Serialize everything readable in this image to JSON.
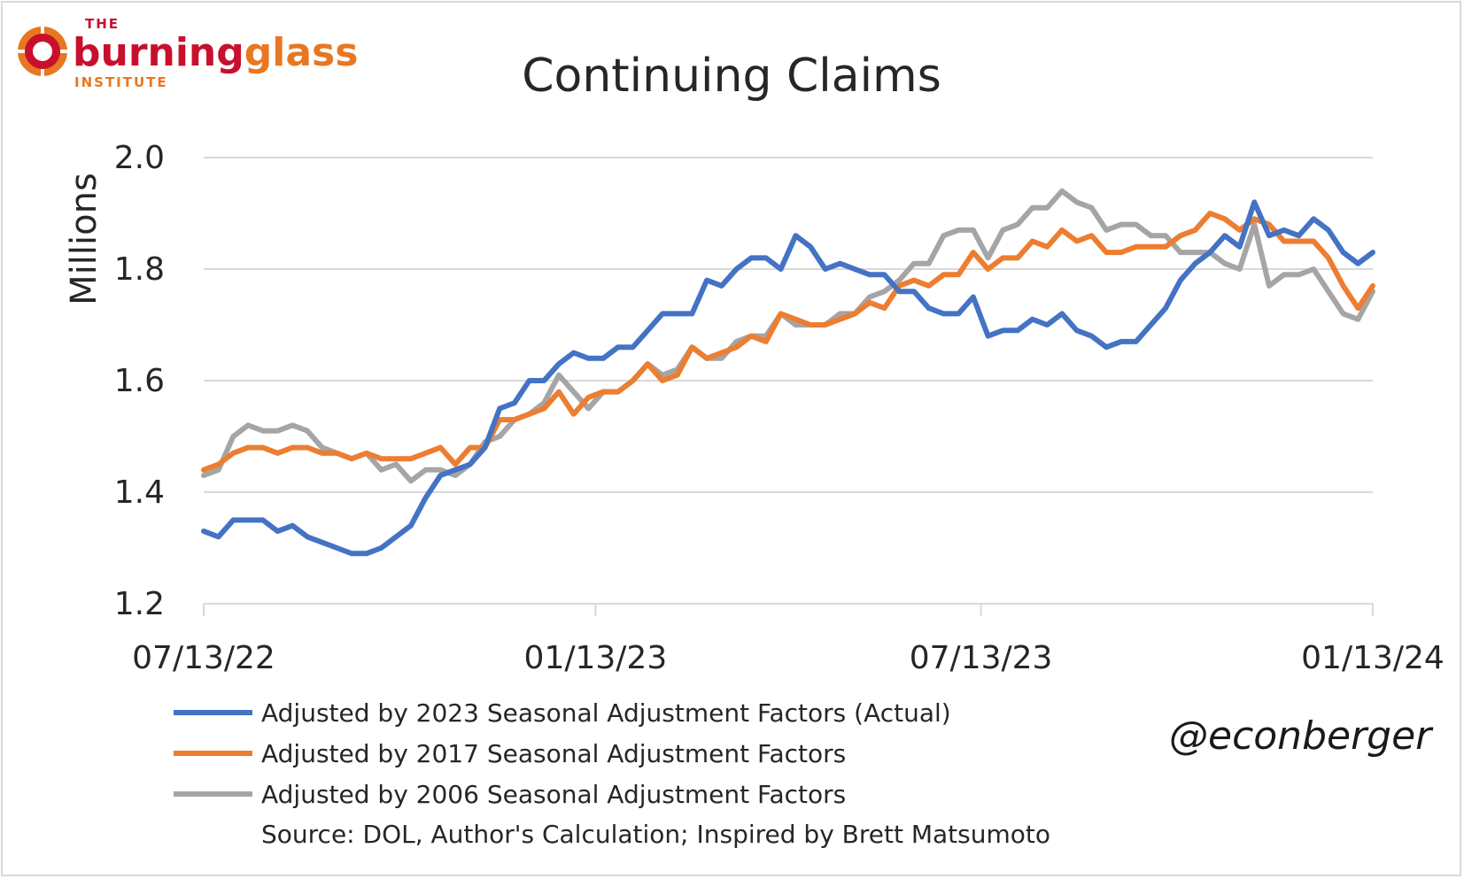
{
  "logo": {
    "the": "THE",
    "name_part1": "burning",
    "name_part2": "glass",
    "institute": "INSTITUTE"
  },
  "handle": "@econberger",
  "source_note": "Source: DOL, Author's Calculation; Inspired by Brett Matsumoto",
  "colors": {
    "series_2023": "#4472c4",
    "series_2017": "#ed7d31",
    "series_2006": "#a5a5a5",
    "logo_red": "#c8102e",
    "logo_orange": "#e87722"
  },
  "chart_data": {
    "type": "line",
    "title": "Continuing Claims",
    "ylabel": "Millions",
    "xlabel": "",
    "ylim": [
      1.2,
      2.0
    ],
    "yticks": [
      "1.2",
      "1.4",
      "1.6",
      "1.8",
      "2.0"
    ],
    "xticks": [
      "07/13/22",
      "01/13/23",
      "07/13/23",
      "01/13/24"
    ],
    "x_start": "07/13/22",
    "x_end": "01/13/24",
    "x_interval": "weekly",
    "grid": true,
    "legend_position": "bottom",
    "series": [
      {
        "name": "Adjusted by 2023 Seasonal Adjustment Factors (Actual)",
        "color": "#4472c4",
        "values": [
          1.33,
          1.32,
          1.35,
          1.35,
          1.35,
          1.33,
          1.34,
          1.32,
          1.31,
          1.3,
          1.29,
          1.29,
          1.3,
          1.32,
          1.34,
          1.39,
          1.43,
          1.44,
          1.45,
          1.48,
          1.55,
          1.56,
          1.6,
          1.6,
          1.63,
          1.65,
          1.64,
          1.64,
          1.66,
          1.66,
          1.69,
          1.72,
          1.72,
          1.72,
          1.78,
          1.77,
          1.8,
          1.82,
          1.82,
          1.8,
          1.86,
          1.84,
          1.8,
          1.81,
          1.8,
          1.79,
          1.79,
          1.76,
          1.76,
          1.73,
          1.72,
          1.72,
          1.75,
          1.68,
          1.69,
          1.69,
          1.71,
          1.7,
          1.72,
          1.69,
          1.68,
          1.66,
          1.67,
          1.67,
          1.7,
          1.73,
          1.78,
          1.81,
          1.83,
          1.86,
          1.84,
          1.92,
          1.86,
          1.87,
          1.86,
          1.89,
          1.87,
          1.83,
          1.81,
          1.83
        ]
      },
      {
        "name": "Adjusted by 2017 Seasonal Adjustment Factors",
        "color": "#ed7d31",
        "values": [
          1.44,
          1.45,
          1.47,
          1.48,
          1.48,
          1.47,
          1.48,
          1.48,
          1.47,
          1.47,
          1.46,
          1.47,
          1.46,
          1.46,
          1.46,
          1.47,
          1.48,
          1.45,
          1.48,
          1.48,
          1.53,
          1.53,
          1.54,
          1.55,
          1.58,
          1.54,
          1.57,
          1.58,
          1.58,
          1.6,
          1.63,
          1.6,
          1.61,
          1.66,
          1.64,
          1.65,
          1.66,
          1.68,
          1.67,
          1.72,
          1.71,
          1.7,
          1.7,
          1.71,
          1.72,
          1.74,
          1.73,
          1.77,
          1.78,
          1.77,
          1.79,
          1.79,
          1.83,
          1.8,
          1.82,
          1.82,
          1.85,
          1.84,
          1.87,
          1.85,
          1.86,
          1.83,
          1.83,
          1.84,
          1.84,
          1.84,
          1.86,
          1.87,
          1.9,
          1.89,
          1.87,
          1.89,
          1.88,
          1.85,
          1.85,
          1.85,
          1.82,
          1.77,
          1.73,
          1.77
        ]
      },
      {
        "name": "Adjusted by 2006 Seasonal Adjustment Factors",
        "color": "#a5a5a5",
        "values": [
          1.43,
          1.44,
          1.5,
          1.52,
          1.51,
          1.51,
          1.52,
          1.51,
          1.48,
          1.47,
          1.46,
          1.47,
          1.44,
          1.45,
          1.42,
          1.44,
          1.44,
          1.43,
          1.45,
          1.49,
          1.5,
          1.53,
          1.54,
          1.56,
          1.61,
          1.58,
          1.55,
          1.58,
          1.58,
          1.6,
          1.63,
          1.61,
          1.62,
          1.66,
          1.64,
          1.64,
          1.67,
          1.68,
          1.68,
          1.72,
          1.7,
          1.7,
          1.7,
          1.72,
          1.72,
          1.75,
          1.76,
          1.78,
          1.81,
          1.81,
          1.86,
          1.87,
          1.87,
          1.82,
          1.87,
          1.88,
          1.91,
          1.91,
          1.94,
          1.92,
          1.91,
          1.87,
          1.88,
          1.88,
          1.86,
          1.86,
          1.83,
          1.83,
          1.83,
          1.81,
          1.8,
          1.88,
          1.77,
          1.79,
          1.79,
          1.8,
          1.76,
          1.72,
          1.71,
          1.76
        ]
      }
    ]
  }
}
